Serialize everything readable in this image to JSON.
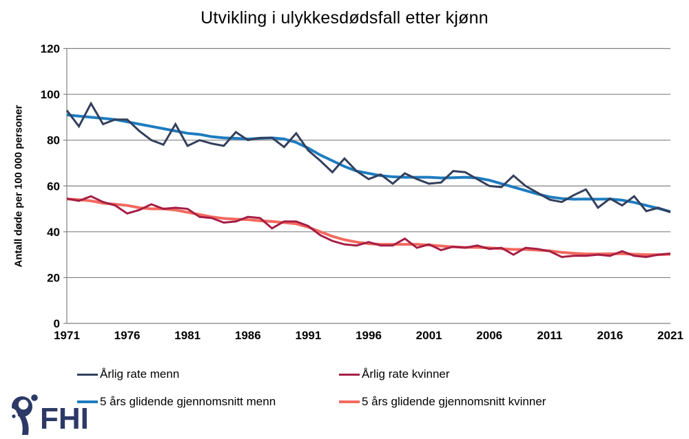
{
  "title": "Utvikling i ulykkesdødsfall etter kjønn",
  "chart_data": {
    "type": "line",
    "title": "Utvikling i ulykkesdødsfall etter kjønn",
    "xlabel": "",
    "ylabel": "Antall døde per 100 000 personer",
    "xlim": [
      1971,
      2021
    ],
    "ylim": [
      0,
      120
    ],
    "x_ticks": [
      1971,
      1976,
      1981,
      1986,
      1991,
      1996,
      2001,
      2006,
      2011,
      2016,
      2021
    ],
    "y_ticks": [
      0,
      20,
      40,
      60,
      80,
      100,
      120
    ],
    "grid": true,
    "axis_color": "#808080",
    "legend_position": "bottom",
    "x_start": 1971,
    "x_step": 1,
    "series": [
      {
        "name": "Årlig rate menn",
        "color": "#333F5B",
        "width": 3,
        "z": 1,
        "values": [
          93,
          86,
          96,
          87,
          89,
          89,
          84,
          80,
          78,
          87,
          77.5,
          80,
          78.5,
          77.5,
          83.5,
          80,
          81,
          81,
          77,
          83,
          75.5,
          71,
          66,
          72,
          66.5,
          63,
          65,
          61,
          65.5,
          63,
          61,
          61.5,
          66.5,
          66,
          63,
          60,
          59.5,
          64.5,
          60,
          57,
          54,
          53,
          56,
          58.5,
          50.5,
          54.5,
          51.5,
          55.5,
          49,
          50.5,
          48.5
        ]
      },
      {
        "name": "Årlig rate kvinner",
        "color": "#A51E45",
        "width": 3,
        "z": 1,
        "values": [
          54.5,
          53.5,
          55.5,
          53,
          51.5,
          48,
          49.5,
          52,
          50,
          50.5,
          50,
          46.5,
          46,
          44,
          44.5,
          46.5,
          46,
          41.5,
          44.5,
          44.5,
          42.5,
          38.5,
          36,
          34.5,
          34,
          35.5,
          34,
          34,
          37,
          33,
          34.5,
          32,
          33.5,
          33,
          34,
          32.5,
          33,
          30,
          33,
          32.5,
          31.5,
          29,
          29.5,
          29.5,
          30,
          29.5,
          31.5,
          29.5,
          29,
          30,
          30.5
        ]
      },
      {
        "name": "5 års glidende gjennomsnitt menn",
        "color": "#1E7CC0",
        "width": 4,
        "z": 0,
        "values": [
          91,
          90.5,
          90,
          89.5,
          89,
          88,
          87,
          86,
          85,
          84,
          83,
          82.5,
          81.5,
          81,
          80.8,
          80.5,
          80.8,
          81,
          80.5,
          79,
          76.5,
          73.5,
          71,
          68.5,
          66.5,
          65.5,
          64.5,
          64,
          63.8,
          63.8,
          63.8,
          63.5,
          63.6,
          63.8,
          63.5,
          62.5,
          61,
          59.5,
          58,
          56.5,
          55.2,
          54.5,
          54.2,
          54.3,
          54.2,
          54.3,
          53.8,
          52.8,
          51.5,
          50.2,
          48.8
        ]
      },
      {
        "name": "5 års glidende gjennomsnitt kvinner",
        "color": "#F4695E",
        "width": 4,
        "z": 0,
        "values": [
          54.3,
          54,
          53.5,
          52.5,
          52,
          51.5,
          50.5,
          50,
          50,
          49.5,
          48.5,
          47.5,
          46.5,
          45.8,
          45.5,
          45.3,
          44.8,
          44.5,
          44,
          43.5,
          42,
          40,
          38,
          36.5,
          35.5,
          34.8,
          34.5,
          34.5,
          34.5,
          34.5,
          34.2,
          33.8,
          33.4,
          33.2,
          33.2,
          33,
          32.6,
          32.3,
          32.3,
          32,
          31.7,
          31,
          30.6,
          30.3,
          30.3,
          30.4,
          30.4,
          30.2,
          30,
          30,
          30.2
        ]
      }
    ]
  },
  "logo": {
    "text": "FHI",
    "color": "#2C3966"
  }
}
